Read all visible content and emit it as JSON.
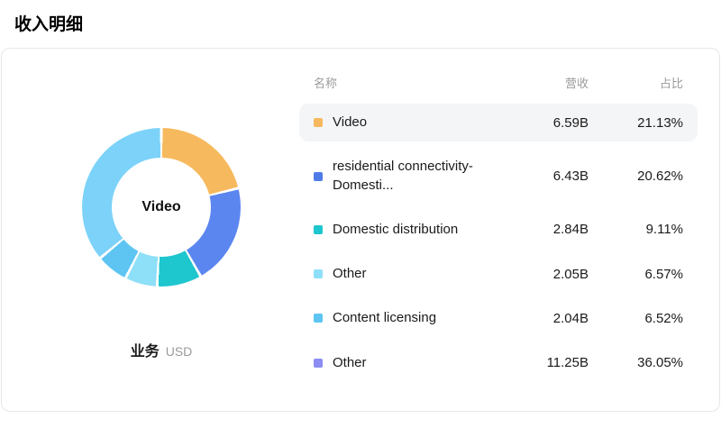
{
  "page": {
    "title": "收入明细"
  },
  "card": {
    "footer": {
      "label": "业务",
      "unit": "USD"
    },
    "table": {
      "headers": [
        "名称",
        "营收",
        "占比"
      ],
      "rows": [
        {
          "name": "Video",
          "revenue": "6.59B",
          "share": "21.13%",
          "marker_color": "#F6B95D",
          "highlighted": true
        },
        {
          "name": "residential connectivity-Domesti...",
          "revenue": "6.43B",
          "share": "20.62%",
          "marker_color": "#4E7BE8",
          "highlighted": false
        },
        {
          "name": "Domestic distribution",
          "revenue": "2.84B",
          "share": "9.11%",
          "marker_color": "#1EC6CE",
          "highlighted": false
        },
        {
          "name": "Other",
          "revenue": "2.05B",
          "share": "6.57%",
          "marker_color": "#8EDFF8",
          "highlighted": false
        },
        {
          "name": "Content licensing",
          "revenue": "2.04B",
          "share": "6.52%",
          "marker_color": "#5EC5F2",
          "highlighted": false
        },
        {
          "name": "Other",
          "revenue": "11.25B",
          "share": "36.05%",
          "marker_color": "#8B8DF3",
          "highlighted": false
        }
      ]
    }
  },
  "chart_data": {
    "type": "pie",
    "subtype": "donut",
    "title": "收入明细",
    "center_label": "Video",
    "unit": "USD",
    "labels": [
      "Video",
      "residential connectivity-Domesti...",
      "Domestic distribution",
      "Other",
      "Content licensing",
      "Other"
    ],
    "values": [
      21.13,
      20.62,
      9.11,
      6.57,
      6.52,
      36.05
    ],
    "revenues": [
      "6.59B",
      "6.43B",
      "2.84B",
      "2.05B",
      "2.04B",
      "11.25B"
    ],
    "colors": [
      "#F6B95D",
      "#5B86F0",
      "#1EC6CE",
      "#8EDFF8",
      "#5EC5F2",
      "#7CD2F9"
    ],
    "start_angle_deg": 0,
    "direction": "clockwise",
    "inner_radius_ratio": 0.62,
    "legend_position": "right-table"
  }
}
